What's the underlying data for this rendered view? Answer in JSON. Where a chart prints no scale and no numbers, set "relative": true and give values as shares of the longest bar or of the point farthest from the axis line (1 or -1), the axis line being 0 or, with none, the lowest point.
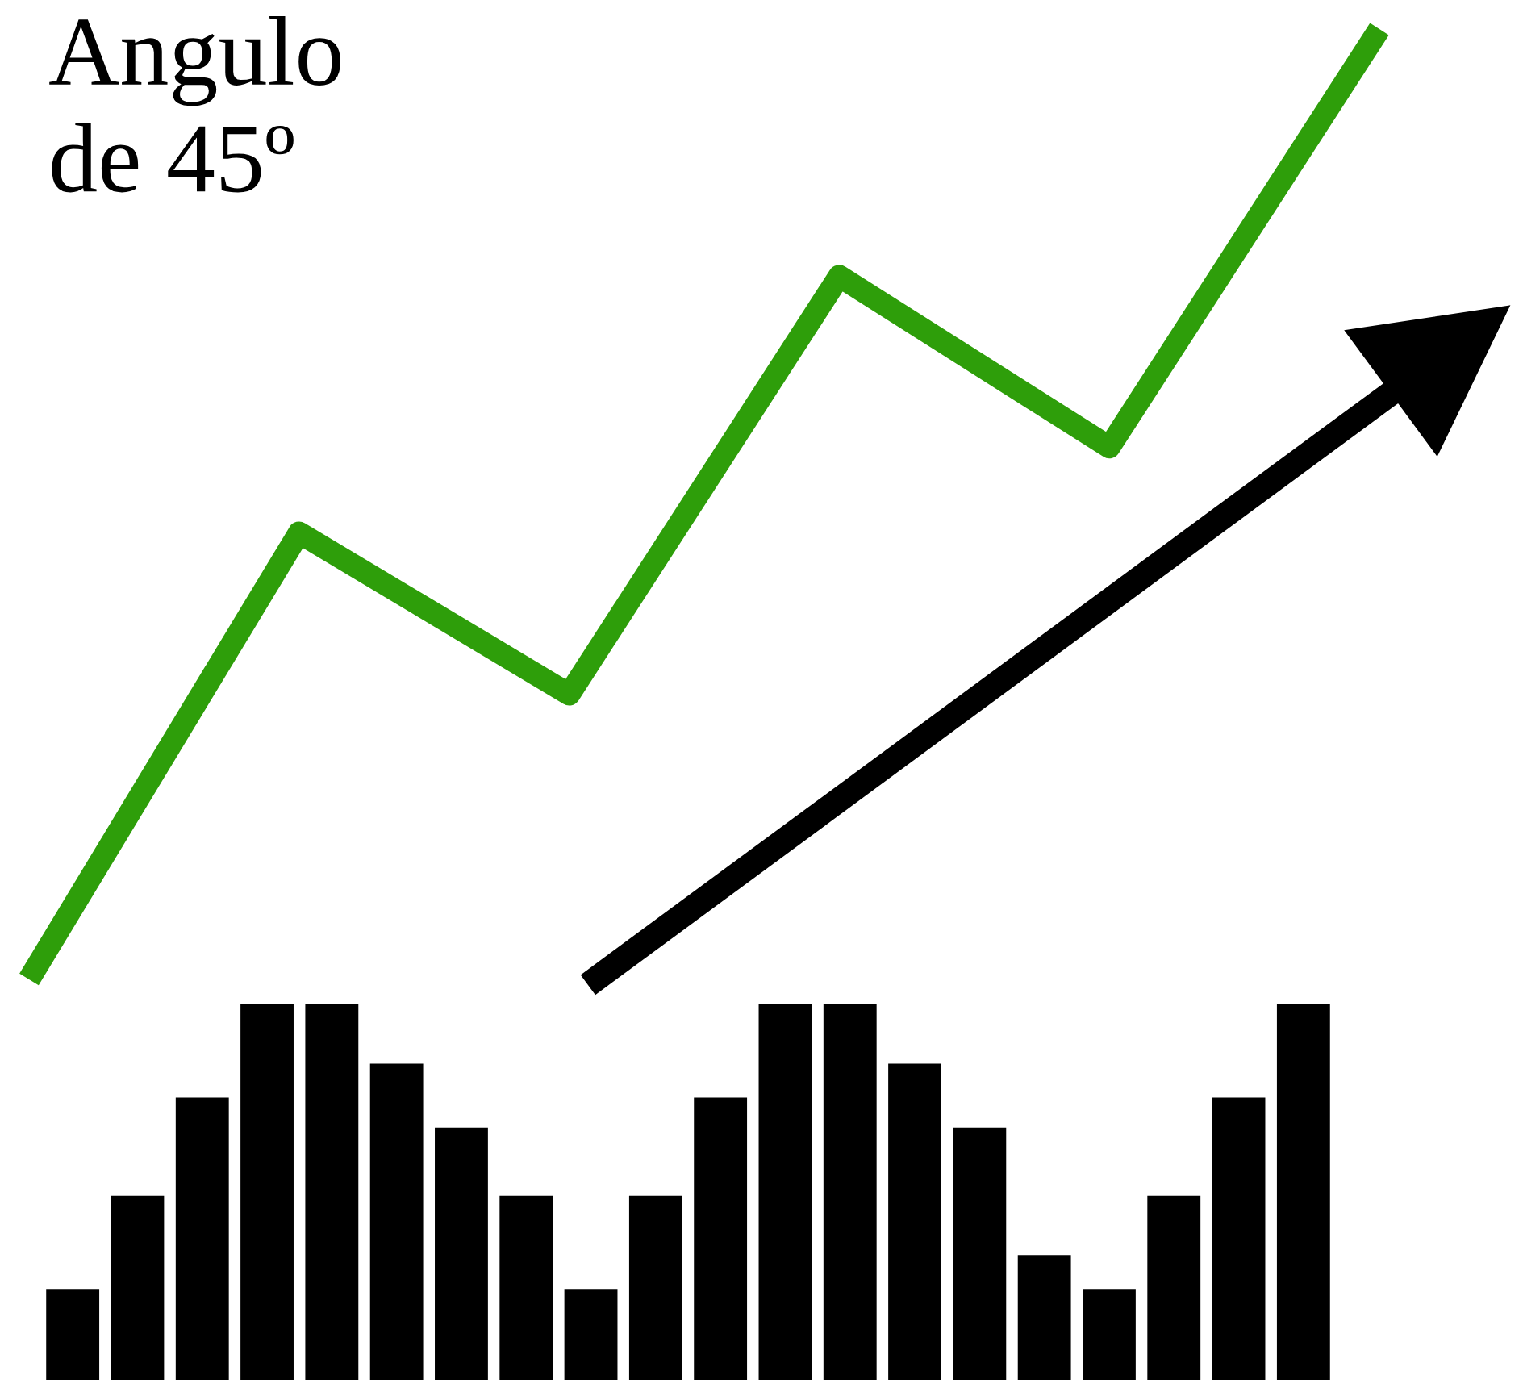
{
  "chart_data": [
    {
      "type": "line",
      "title": "Angulo de 45º",
      "relative": true,
      "categories": [
        null,
        null,
        null,
        null,
        null,
        null
      ],
      "series": [
        {
          "color": "#2e9e0a",
          "values": [
            0,
            0.47,
            0.3,
            0.74,
            0.56,
            1
          ]
        }
      ]
    },
    {
      "type": "bar",
      "relative": true,
      "categories": [
        null,
        null,
        null,
        null,
        null,
        null,
        null,
        null,
        null,
        null,
        null,
        null,
        null,
        null,
        null,
        null,
        null,
        null,
        null,
        null
      ],
      "series": [
        {
          "color": "#000000",
          "values": [
            0.24,
            0.49,
            0.75,
            1,
            1,
            0.84,
            0.67,
            0.49,
            0.24,
            0.49,
            0.75,
            1,
            1,
            0.84,
            0.67,
            0.33,
            0.24,
            0.49,
            0.75,
            1
          ]
        }
      ]
    }
  ]
}
